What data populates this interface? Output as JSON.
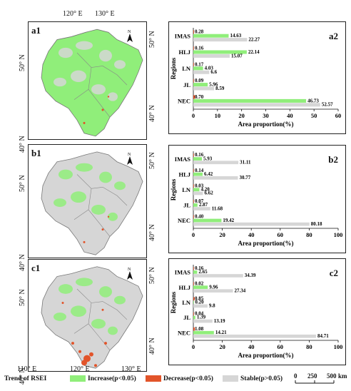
{
  "maps": {
    "top_lon_labels": [
      "120° E",
      "130° E"
    ],
    "bottom_lon_labels": [
      "110° E",
      "120° E",
      "130° E"
    ],
    "lat_label_50": "50° N",
    "lat_label_40": "40° N",
    "north_symbol": "N",
    "colors": {
      "increase": "#90ee7a",
      "decrease": "#e2542a",
      "stable": "#d6d6d6"
    },
    "panels": [
      {
        "letter": "a1",
        "dominant": "increase",
        "decrease_level": "low"
      },
      {
        "letter": "b1",
        "dominant": "stable",
        "decrease_level": "low"
      },
      {
        "letter": "c1",
        "dominant": "stable",
        "decrease_level": "high"
      }
    ]
  },
  "chart_data": [
    {
      "type": "bar",
      "panel_label": "a2",
      "categories": [
        "IMAS",
        "HLJ",
        "LN",
        "JL",
        "NEC"
      ],
      "series": [
        {
          "key": "decrease",
          "values": [
            0.28,
            0.16,
            0.17,
            0.09,
            0.7
          ]
        },
        {
          "key": "increase",
          "values": [
            14.63,
            22.14,
            4.03,
            5.96,
            46.73
          ]
        },
        {
          "key": "stable",
          "values": [
            22.27,
            15.07,
            6.6,
            8.59,
            52.57
          ]
        }
      ],
      "value_labels": {
        "decrease": [
          "0.28",
          "0.16",
          "0.17",
          "0.09",
          "0.70"
        ],
        "increase": [
          "14.63",
          "22.14",
          "4.03",
          "5.96",
          "46.73"
        ],
        "stable": [
          "22.27",
          "15.07",
          "6.6",
          "8.59",
          "52.57"
        ]
      },
      "xlabel": "Area proportion(%)",
      "ylabel": "Regions",
      "xlim": [
        0,
        60
      ],
      "xticks": [
        "0",
        "10",
        "20",
        "30",
        "40",
        "50",
        "60"
      ]
    },
    {
      "type": "bar",
      "panel_label": "b2",
      "categories": [
        "IMAS",
        "HLJ",
        "LN",
        "JL",
        "NEC"
      ],
      "series": [
        {
          "key": "decrease",
          "values": [
            0.16,
            0.14,
            0.03,
            0.07,
            0.4
          ]
        },
        {
          "key": "increase",
          "values": [
            5.93,
            6.42,
            4.2,
            2.87,
            19.42
          ]
        },
        {
          "key": "stable",
          "values": [
            31.11,
            30.77,
            6.62,
            11.68,
            80.18
          ]
        }
      ],
      "value_labels": {
        "decrease": [
          "0.16",
          "0.14",
          "0.03",
          "0.07",
          "0.40"
        ],
        "increase": [
          "5.93",
          "6.42",
          "4.20",
          "2.87",
          "19.42"
        ],
        "stable": [
          "31.11",
          "30.77",
          "6.62",
          "11.68",
          "80.18"
        ]
      },
      "xlabel": "Area proportion(%)",
      "ylabel": "Regions",
      "xlim": [
        0,
        100
      ],
      "xticks": [
        "0",
        "20",
        "40",
        "60",
        "80",
        "100"
      ]
    },
    {
      "type": "bar",
      "panel_label": "c2",
      "categories": [
        "IMAS",
        "HLJ",
        "LN",
        "JL",
        "NEC"
      ],
      "series": [
        {
          "key": "decrease",
          "values": [
            0.16,
            0.02,
            0.85,
            0.04,
            1.08
          ]
        },
        {
          "key": "increase",
          "values": [
            2.65,
            9.96,
            0.2,
            1.39,
            14.21
          ]
        },
        {
          "key": "stable",
          "values": [
            34.39,
            27.34,
            9.8,
            13.19,
            84.71
          ]
        }
      ],
      "value_labels": {
        "decrease": [
          "0.16",
          "0.02",
          "0.85",
          "0.04",
          "1.08"
        ],
        "increase": [
          "2.65",
          "9.96",
          "0.20",
          "1.39",
          "14.21"
        ],
        "stable": [
          "34.39",
          "27.34",
          "9.8",
          "13.19",
          "84.71"
        ]
      },
      "xlabel": "Area proportion(%)",
      "ylabel": "Regions",
      "xlim": [
        0,
        100
      ],
      "xticks": [
        "0",
        "20",
        "40",
        "60",
        "80",
        "100"
      ]
    }
  ],
  "legend": {
    "title": "Trend of RSEI",
    "items": [
      {
        "key": "increase",
        "label": "Increase(p<0.05)",
        "color": "#90ee7a"
      },
      {
        "key": "decrease",
        "label": "Decrease(p<0.05)",
        "color": "#e2542a"
      },
      {
        "key": "stable",
        "label": "Stable(p>0.05)",
        "color": "#d6d6d6"
      }
    ]
  },
  "scalebar": {
    "ticks": [
      "0",
      "250",
      "500"
    ],
    "unit": "km"
  }
}
